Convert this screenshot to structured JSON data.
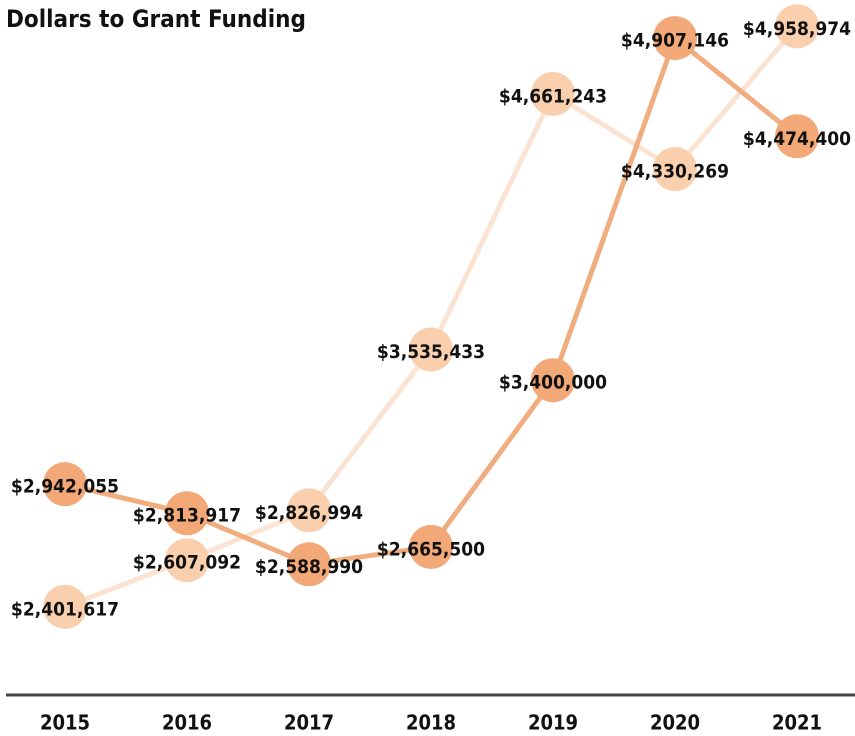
{
  "chart_data": {
    "type": "line",
    "title": "Dollars to Grant Funding",
    "categories": [
      "2015",
      "2016",
      "2017",
      "2018",
      "2019",
      "2020",
      "2021"
    ],
    "series": [
      {
        "color": "#fbe3d3",
        "marker_color": "#f9cfae",
        "values": [
          2401617,
          2607092,
          2826994,
          3535433,
          4661243,
          4330269,
          4958974
        ],
        "value_labels": [
          "$2,401,617",
          "$2,607,092",
          "$2,826,994",
          "$3,535,433",
          "$4,661,243",
          "$4,330,269",
          "$4,958,974"
        ]
      },
      {
        "color": "#f0ae80",
        "marker_color": "#f2a877",
        "values": [
          2942055,
          2813917,
          2588990,
          2665500,
          3400000,
          4907146,
          4474400
        ],
        "value_labels": [
          "$2,942,055",
          "$2,813,917",
          "$2,588,990",
          "$2,665,500",
          "$3,400,000",
          "$4,907,146",
          "$4,474,400"
        ]
      }
    ],
    "ylim": [
      2000000,
      5000000
    ]
  }
}
